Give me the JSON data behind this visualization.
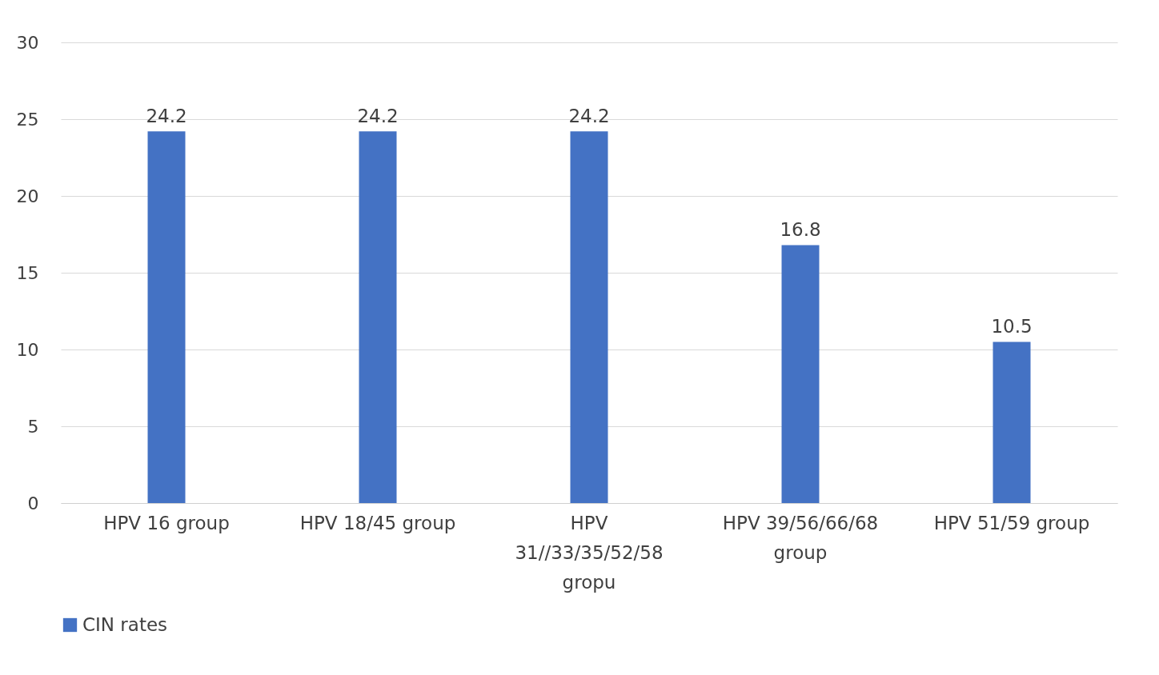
{
  "chart_data": {
    "type": "bar",
    "categories": [
      "HPV 16 group",
      "HPV 18/45 group",
      "HPV 31//33/35/52/58 gropu",
      "HPV 39/56/66/68 group",
      "HPV 51/59 group"
    ],
    "series": [
      {
        "name": "CIN rates",
        "color": "#4472c4",
        "values": [
          24.2,
          24.2,
          24.2,
          16.8,
          10.5
        ]
      }
    ],
    "ylim": [
      0,
      30
    ],
    "yticks": [
      0,
      5,
      10,
      15,
      20,
      25,
      30
    ],
    "grid": "y",
    "legend": "bottom",
    "data_labels": true
  }
}
